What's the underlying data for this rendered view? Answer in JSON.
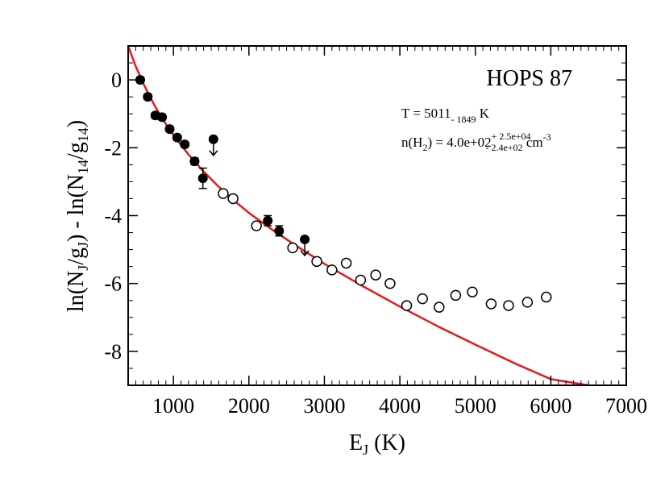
{
  "chart_data": {
    "type": "scatter",
    "title": "HOPS 87",
    "xlabel": {
      "main": "E",
      "sub": "J",
      "tail": " (K)"
    },
    "ylabel": {
      "p1": "ln(N",
      "s1": "J",
      "p2": "/g",
      "s2": "J",
      "p3": ") - ln(N",
      "s3": "14",
      "p4": "/g",
      "s4": "14",
      "p5": ")"
    },
    "xlim": [
      400,
      7000
    ],
    "ylim": [
      -9,
      1
    ],
    "xticks": [
      "1000",
      "2000",
      "3000",
      "4000",
      "5000",
      "6000",
      "7000"
    ],
    "yticks": [
      "0",
      "-2",
      "-4",
      "-6",
      "-8"
    ],
    "annotations": {
      "temperature": {
        "prefix": "T = 5011",
        "sub": "- 1849",
        "suffix": "  K"
      },
      "density": {
        "prefix": "n(H",
        "sub": "2",
        "mid": ") =  4.0e+02",
        "sup_err": "+ 2.5e+04",
        "sub_err": "- 2.4e+02",
        "unit": " cm",
        "unit_exp": "-3"
      }
    },
    "series": [
      {
        "marker": "filled-circle",
        "x": [
          560,
          660,
          760,
          850,
          950,
          1050,
          1150,
          1280,
          1390,
          2250,
          2400
        ],
        "y": [
          0.0,
          -0.5,
          -1.05,
          -1.1,
          -1.45,
          -1.7,
          -1.9,
          -2.4,
          -2.9,
          -4.15,
          -4.45
        ],
        "yerr": [
          0.08,
          0.08,
          0.08,
          0.08,
          0.08,
          0.08,
          0.08,
          0.1,
          0.3,
          0.15,
          0.15
        ]
      },
      {
        "marker": "upper-limit",
        "x": [
          1530,
          2740
        ],
        "y": [
          -1.75,
          -4.7
        ]
      },
      {
        "marker": "open-circle",
        "x": [
          1660,
          1790,
          2100,
          2580,
          2900,
          3100,
          3290,
          3480,
          3680,
          3870,
          4090,
          4300,
          4520,
          4740,
          4960,
          5210,
          5440,
          5690,
          5940
        ],
        "y": [
          -3.35,
          -3.5,
          -4.3,
          -4.95,
          -5.35,
          -5.6,
          -5.4,
          -5.9,
          -5.75,
          -6.0,
          -6.65,
          -6.45,
          -6.7,
          -6.35,
          -6.25,
          -6.6,
          -6.65,
          -6.55,
          -6.4
        ]
      },
      {
        "type": "line",
        "color": "#e31a1c",
        "x": [
          400,
          500,
          600,
          700,
          800,
          900,
          1000,
          1200,
          1400,
          1600,
          1800,
          2000,
          2300,
          2600,
          3000,
          3500,
          4000,
          4500,
          5000,
          5500,
          6000,
          6500
        ],
        "y": [
          1.0,
          0.4,
          -0.1,
          -0.55,
          -0.95,
          -1.3,
          -1.63,
          -2.2,
          -2.7,
          -3.15,
          -3.55,
          -3.92,
          -4.4,
          -4.85,
          -5.42,
          -6.07,
          -6.68,
          -7.26,
          -7.8,
          -8.33,
          -8.82,
          -9.0
        ]
      }
    ]
  }
}
